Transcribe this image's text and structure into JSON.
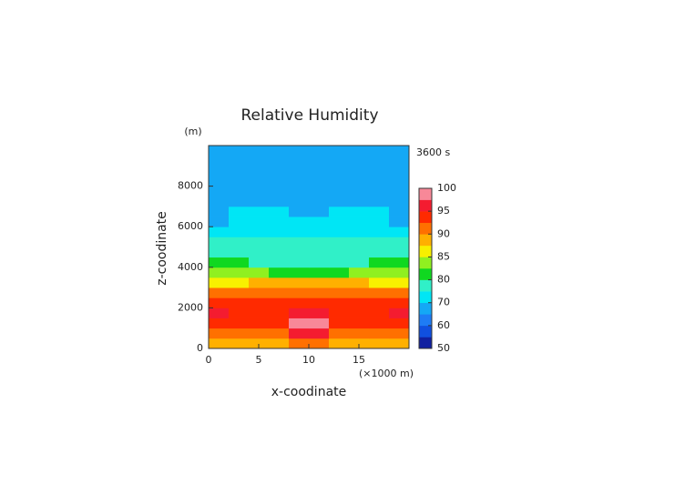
{
  "chart_data": {
    "type": "contour",
    "title": "Relative Humidity",
    "y_unit": "(m)",
    "time_label": "3600 s",
    "x_label": "x-coodinate",
    "x_unit": "(×1000 m)",
    "y_label": "z-coodinate",
    "x": [
      1,
      3,
      5,
      7,
      9,
      11,
      13,
      15,
      17,
      19
    ],
    "y": [
      250,
      750,
      1250,
      1750,
      2250,
      2750,
      3250,
      3750,
      4250,
      4750,
      5250,
      5750,
      6250,
      6750,
      7250,
      7750,
      8250,
      8750,
      9250,
      9750
    ],
    "z": [
      [
        88,
        88,
        88,
        89,
        91,
        91,
        89,
        88,
        88,
        88
      ],
      [
        91,
        91,
        91,
        92,
        96,
        96,
        92,
        91,
        91,
        91
      ],
      [
        93,
        93,
        93,
        94,
        98,
        98,
        94,
        93,
        93,
        93
      ],
      [
        96,
        94,
        94,
        94,
        96,
        96,
        94,
        94,
        94,
        96
      ],
      [
        93,
        93,
        93,
        93,
        94,
        94,
        93,
        93,
        93,
        93
      ],
      [
        90,
        90,
        91,
        91,
        91,
        91,
        91,
        91,
        90,
        90
      ],
      [
        86,
        87,
        88,
        88,
        88,
        88,
        88,
        88,
        87,
        86
      ],
      [
        83,
        84,
        83,
        82,
        82,
        82,
        82,
        83,
        84,
        83
      ],
      [
        81,
        80,
        79,
        78,
        77,
        77,
        78,
        79,
        80,
        81
      ],
      [
        78,
        78,
        78,
        78,
        78,
        78,
        78,
        78,
        78,
        78
      ],
      [
        76,
        77,
        77,
        77,
        78,
        78,
        77,
        77,
        77,
        76
      ],
      [
        74,
        74,
        74,
        74,
        74,
        74,
        74,
        74,
        74,
        74
      ],
      [
        69,
        72,
        73,
        72,
        71,
        71,
        72,
        73,
        72,
        69
      ],
      [
        67,
        71,
        72,
        70,
        69,
        69,
        70,
        72,
        71,
        67
      ],
      [
        66,
        68,
        68,
        66,
        66,
        66,
        66,
        68,
        68,
        66
      ],
      [
        66,
        66,
        66,
        66,
        66,
        66,
        66,
        66,
        66,
        66
      ],
      [
        66,
        66,
        66,
        66,
        66,
        66,
        66,
        66,
        66,
        66
      ],
      [
        66,
        66,
        66,
        66,
        66,
        66,
        66,
        66,
        66,
        66
      ],
      [
        66,
        66,
        66,
        66,
        66,
        66,
        66,
        66,
        66,
        66
      ],
      [
        66,
        66,
        66,
        66,
        66,
        66,
        66,
        66,
        66,
        66
      ]
    ],
    "xlim": [
      0,
      20
    ],
    "ylim": [
      0,
      10000
    ],
    "xticks": [
      0,
      5,
      10,
      15
    ],
    "yticks": [
      0,
      2000,
      4000,
      6000,
      8000
    ],
    "levels": [
      50,
      55,
      60,
      65,
      70,
      75,
      80,
      82.5,
      85,
      87.5,
      90,
      92.5,
      95,
      97.5,
      100
    ],
    "colors": [
      "#1020a0",
      "#1050e0",
      "#1e7cf5",
      "#14a8f5",
      "#00e6f5",
      "#30f0c8",
      "#10d820",
      "#90f020",
      "#f8f000",
      "#ffb000",
      "#ff7000",
      "#ff2a00",
      "#f41c30",
      "#f88898"
    ],
    "colorbar_ticks": [
      50,
      60,
      70,
      80,
      85,
      90,
      95,
      100
    ]
  }
}
